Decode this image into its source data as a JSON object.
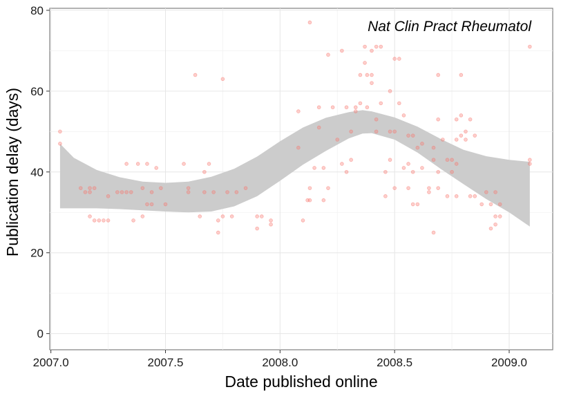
{
  "chart_data": {
    "type": "scatter",
    "title": "",
    "annotation": "Nat Clin Pract Rheumatol",
    "xlabel": "Date published online",
    "ylabel": "Publication delay (days)",
    "xlim": [
      2006.995,
      2009.19
    ],
    "ylim": [
      -4,
      80.5
    ],
    "x_ticks": [
      2007.0,
      2007.5,
      2008.0,
      2008.5,
      2009.0
    ],
    "x_tick_labels": [
      "2007.0",
      "2007.5",
      "2008.0",
      "2008.5",
      "2009.0"
    ],
    "y_ticks": [
      0,
      20,
      40,
      60,
      80
    ],
    "y_tick_labels": [
      "0",
      "20",
      "40",
      "60",
      "80"
    ],
    "grid": true,
    "point_color": "#f8766d",
    "band_color": "#cccccc",
    "points": [
      [
        2007.04,
        50
      ],
      [
        2007.04,
        47
      ],
      [
        2007.13,
        36
      ],
      [
        2007.15,
        35
      ],
      [
        2007.17,
        36
      ],
      [
        2007.17,
        35
      ],
      [
        2007.19,
        36
      ],
      [
        2007.17,
        29
      ],
      [
        2007.19,
        28
      ],
      [
        2007.21,
        28
      ],
      [
        2007.23,
        28
      ],
      [
        2007.25,
        28
      ],
      [
        2007.25,
        34
      ],
      [
        2007.29,
        35
      ],
      [
        2007.31,
        35
      ],
      [
        2007.33,
        35
      ],
      [
        2007.35,
        35
      ],
      [
        2007.33,
        42
      ],
      [
        2007.36,
        28
      ],
      [
        2007.38,
        42
      ],
      [
        2007.4,
        29
      ],
      [
        2007.4,
        36
      ],
      [
        2007.42,
        32
      ],
      [
        2007.42,
        42
      ],
      [
        2007.44,
        32
      ],
      [
        2007.44,
        35
      ],
      [
        2007.46,
        41
      ],
      [
        2007.48,
        36
      ],
      [
        2007.5,
        32
      ],
      [
        2007.58,
        42
      ],
      [
        2007.6,
        36
      ],
      [
        2007.6,
        35
      ],
      [
        2007.63,
        64
      ],
      [
        2007.65,
        29
      ],
      [
        2007.67,
        35
      ],
      [
        2007.67,
        40
      ],
      [
        2007.69,
        42
      ],
      [
        2007.71,
        35
      ],
      [
        2007.73,
        25
      ],
      [
        2007.73,
        28
      ],
      [
        2007.75,
        29
      ],
      [
        2007.75,
        63
      ],
      [
        2007.77,
        35
      ],
      [
        2007.79,
        29
      ],
      [
        2007.81,
        35
      ],
      [
        2007.85,
        36
      ],
      [
        2007.9,
        26
      ],
      [
        2007.9,
        29
      ],
      [
        2007.92,
        29
      ],
      [
        2007.96,
        27
      ],
      [
        2007.96,
        28
      ],
      [
        2008.08,
        55
      ],
      [
        2008.08,
        46
      ],
      [
        2008.1,
        28
      ],
      [
        2008.12,
        33
      ],
      [
        2008.13,
        36
      ],
      [
        2008.13,
        77
      ],
      [
        2008.13,
        33
      ],
      [
        2008.15,
        41
      ],
      [
        2008.17,
        56
      ],
      [
        2008.17,
        51
      ],
      [
        2008.19,
        33
      ],
      [
        2008.19,
        41
      ],
      [
        2008.21,
        36
      ],
      [
        2008.21,
        69
      ],
      [
        2008.23,
        56
      ],
      [
        2008.25,
        48
      ],
      [
        2008.27,
        70
      ],
      [
        2008.27,
        42
      ],
      [
        2008.29,
        40
      ],
      [
        2008.29,
        56
      ],
      [
        2008.31,
        50
      ],
      [
        2008.31,
        43
      ],
      [
        2008.33,
        55
      ],
      [
        2008.33,
        56
      ],
      [
        2008.35,
        57
      ],
      [
        2008.35,
        64
      ],
      [
        2008.37,
        71
      ],
      [
        2008.37,
        67
      ],
      [
        2008.38,
        64
      ],
      [
        2008.38,
        56
      ],
      [
        2008.4,
        64
      ],
      [
        2008.4,
        62
      ],
      [
        2008.4,
        70
      ],
      [
        2008.42,
        71
      ],
      [
        2008.42,
        53
      ],
      [
        2008.42,
        50
      ],
      [
        2008.44,
        71
      ],
      [
        2008.44,
        57
      ],
      [
        2008.46,
        40
      ],
      [
        2008.46,
        34
      ],
      [
        2008.48,
        60
      ],
      [
        2008.48,
        50
      ],
      [
        2008.48,
        43
      ],
      [
        2008.5,
        68
      ],
      [
        2008.5,
        50
      ],
      [
        2008.5,
        36
      ],
      [
        2008.52,
        68
      ],
      [
        2008.52,
        57
      ],
      [
        2008.54,
        54
      ],
      [
        2008.54,
        41
      ],
      [
        2008.56,
        42
      ],
      [
        2008.56,
        49
      ],
      [
        2008.56,
        36
      ],
      [
        2008.58,
        49
      ],
      [
        2008.58,
        40
      ],
      [
        2008.58,
        32
      ],
      [
        2008.6,
        46
      ],
      [
        2008.6,
        32
      ],
      [
        2008.62,
        41
      ],
      [
        2008.62,
        47
      ],
      [
        2008.65,
        35
      ],
      [
        2008.65,
        36
      ],
      [
        2008.67,
        43
      ],
      [
        2008.67,
        25
      ],
      [
        2008.67,
        46
      ],
      [
        2008.69,
        64
      ],
      [
        2008.69,
        53
      ],
      [
        2008.69,
        40
      ],
      [
        2008.69,
        36
      ],
      [
        2008.71,
        48
      ],
      [
        2008.73,
        43
      ],
      [
        2008.73,
        34
      ],
      [
        2008.75,
        43
      ],
      [
        2008.75,
        40
      ],
      [
        2008.77,
        53
      ],
      [
        2008.77,
        48
      ],
      [
        2008.77,
        42
      ],
      [
        2008.77,
        34
      ],
      [
        2008.79,
        64
      ],
      [
        2008.79,
        54
      ],
      [
        2008.79,
        49
      ],
      [
        2008.81,
        50
      ],
      [
        2008.81,
        48
      ],
      [
        2008.83,
        53
      ],
      [
        2008.83,
        34
      ],
      [
        2008.85,
        34
      ],
      [
        2008.85,
        49
      ],
      [
        2008.88,
        32
      ],
      [
        2008.9,
        35
      ],
      [
        2008.92,
        32
      ],
      [
        2008.92,
        26
      ],
      [
        2008.94,
        29
      ],
      [
        2008.94,
        27
      ],
      [
        2008.96,
        32
      ],
      [
        2008.96,
        29
      ],
      [
        2008.94,
        35
      ],
      [
        2009.09,
        71
      ],
      [
        2009.09,
        43
      ],
      [
        2009.09,
        42
      ]
    ],
    "smooth_band": [
      {
        "x": 2007.04,
        "lo": 31,
        "hi": 47,
        "fit": 39
      },
      {
        "x": 2007.1,
        "lo": 31,
        "hi": 43.5,
        "fit": 37.2
      },
      {
        "x": 2007.2,
        "lo": 31,
        "hi": 40.5,
        "fit": 35.8
      },
      {
        "x": 2007.3,
        "lo": 30.8,
        "hi": 38.7,
        "fit": 34.8
      },
      {
        "x": 2007.4,
        "lo": 30.5,
        "hi": 37.6,
        "fit": 34.1
      },
      {
        "x": 2007.5,
        "lo": 30.2,
        "hi": 37.3,
        "fit": 33.8
      },
      {
        "x": 2007.6,
        "lo": 30.0,
        "hi": 37.6,
        "fit": 33.8
      },
      {
        "x": 2007.7,
        "lo": 30.2,
        "hi": 38.8,
        "fit": 34.5
      },
      {
        "x": 2007.8,
        "lo": 31.5,
        "hi": 40.8,
        "fit": 36.2
      },
      {
        "x": 2007.9,
        "lo": 34.0,
        "hi": 43.8,
        "fit": 38.9
      },
      {
        "x": 2008.0,
        "lo": 37.8,
        "hi": 47.6,
        "fit": 42.7
      },
      {
        "x": 2008.1,
        "lo": 41.8,
        "hi": 51.0,
        "fit": 46.4
      },
      {
        "x": 2008.2,
        "lo": 45.2,
        "hi": 53.4,
        "fit": 49.3
      },
      {
        "x": 2008.3,
        "lo": 48.3,
        "hi": 54.8,
        "fit": 51.6
      },
      {
        "x": 2008.36,
        "lo": 49.5,
        "hi": 55.3,
        "fit": 52.4
      },
      {
        "x": 2008.4,
        "lo": 49.6,
        "hi": 55.0,
        "fit": 52.3
      },
      {
        "x": 2008.5,
        "lo": 48.0,
        "hi": 53.5,
        "fit": 50.8
      },
      {
        "x": 2008.6,
        "lo": 44.8,
        "hi": 51.2,
        "fit": 48.0
      },
      {
        "x": 2008.7,
        "lo": 40.8,
        "hi": 48.2,
        "fit": 44.5
      },
      {
        "x": 2008.8,
        "lo": 37.0,
        "hi": 45.5,
        "fit": 41.3
      },
      {
        "x": 2008.9,
        "lo": 33.3,
        "hi": 43.9,
        "fit": 38.6
      },
      {
        "x": 2009.0,
        "lo": 30.0,
        "hi": 43.0,
        "fit": 36.5
      },
      {
        "x": 2009.09,
        "lo": 26.5,
        "hi": 42.5,
        "fit": 34.5
      }
    ]
  }
}
